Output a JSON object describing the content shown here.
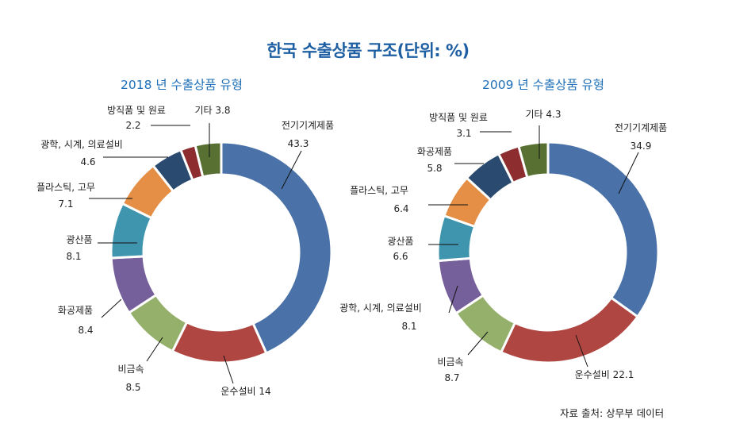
{
  "title": "한국 수출상품 구조(단위: %)",
  "source": "자료 출처: 상무부 데이터",
  "chart_data": [
    {
      "type": "pie",
      "title": "2018 년 수출상품 유형",
      "categories": [
        "전기기계제품",
        "운수설비",
        "비금속",
        "화공제품",
        "광산품",
        "플라스틱, 고무",
        "광학, 시계, 의료설비",
        "방직품 및 원료",
        "기타"
      ],
      "values": [
        43.3,
        14,
        8.5,
        8.4,
        8.1,
        7.1,
        4.6,
        2.2,
        3.8
      ],
      "value_labels": [
        "43.3",
        "14",
        "8.5",
        "8.4",
        "8.1",
        "7.1",
        "4.6",
        "2.2",
        "3.8"
      ],
      "colors": [
        "#4a72a8",
        "#b04642",
        "#95b06b",
        "#76609b",
        "#3f95ad",
        "#e48f45",
        "#2a4b6f",
        "#8d2d2f",
        "#587132"
      ]
    },
    {
      "type": "pie",
      "title": "2009 년 수출상품 유형",
      "categories": [
        "전기기계제품",
        "운수설비",
        "비금속",
        "광학, 시계, 의료설비",
        "광산품",
        "플라스틱, 고무",
        "화공제품",
        "방직품 및 원료",
        "기타"
      ],
      "values": [
        34.9,
        22.1,
        8.7,
        8.1,
        6.6,
        6.4,
        5.8,
        3.1,
        4.3
      ],
      "value_labels": [
        "34.9",
        "22.1",
        "8.7",
        "8.1",
        "6.6",
        "6.4",
        "5.8",
        "3.1",
        "4.3"
      ],
      "colors": [
        "#4a72a8",
        "#b04642",
        "#95b06b",
        "#76609b",
        "#3f95ad",
        "#e48f45",
        "#2a4b6f",
        "#8d2d2f",
        "#587132"
      ]
    }
  ]
}
